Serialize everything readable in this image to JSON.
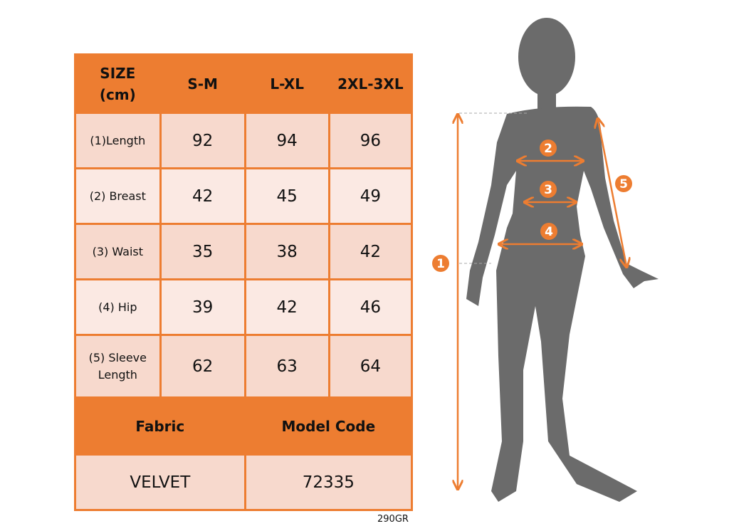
{
  "table": {
    "header": [
      "SIZE\n(cm)",
      "S-M",
      "L-XL",
      "2XL-3XL"
    ],
    "rows": [
      {
        "label": "(1)Length",
        "values": [
          "92",
          "94",
          "96"
        ]
      },
      {
        "label": "(2) Breast",
        "values": [
          "42",
          "45",
          "49"
        ]
      },
      {
        "label": "(3) Waist",
        "values": [
          "35",
          "38",
          "42"
        ]
      },
      {
        "label": "(4) Hip",
        "values": [
          "39",
          "42",
          "46"
        ]
      },
      {
        "label": "(5) Sleeve Length",
        "values": [
          "62",
          "63",
          "64"
        ]
      }
    ],
    "fabric_label": "Fabric",
    "model_code_label": "Model Code",
    "fabric": "VELVET",
    "model_code": "72335"
  },
  "weight": "290GR",
  "figure": {
    "markers": [
      "1",
      "2",
      "3",
      "4",
      "5"
    ],
    "accent": "#ed7d31",
    "silhouette": "#6b6b6b"
  }
}
